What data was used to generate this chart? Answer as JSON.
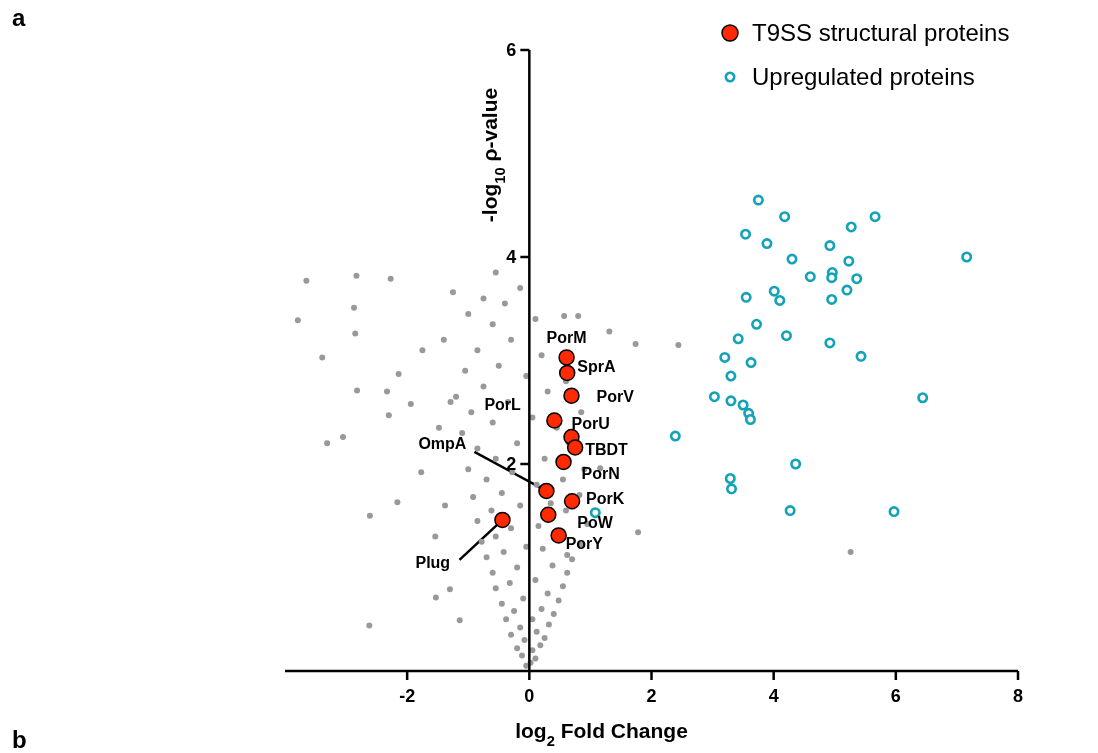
{
  "chart_data": {
    "type": "scatter",
    "xlabel": "log$_{2}$ Fold Change",
    "ylabel": "-log$_{10}$ ρ-value",
    "xlim": [
      -4,
      8
    ],
    "ylim": [
      0,
      6
    ],
    "xticks": [
      -2,
      0,
      2,
      4,
      6,
      8
    ],
    "yticks": [
      2,
      4,
      6
    ],
    "marker": "circle",
    "legend": "top right",
    "grid": false,
    "annotations": [
      "a",
      "b",
      {
        "text": "PorM",
        "x": 0.61,
        "y": 3.03
      },
      {
        "text": "SprA",
        "x": 0.62,
        "y": 2.88
      },
      {
        "text": "PorV",
        "x": 0.69,
        "y": 2.66
      },
      {
        "text": "PorL",
        "x": 0.41,
        "y": 2.42
      },
      {
        "text": "PorU",
        "x": 0.69,
        "y": 2.26
      },
      {
        "text": "TBDT",
        "x": 0.75,
        "y": 2.16
      },
      {
        "text": "PorN",
        "x": 0.56,
        "y": 2.02
      },
      {
        "text": "OmpA",
        "x": 0.28,
        "y": 1.74
      },
      {
        "text": "PorK",
        "x": 0.7,
        "y": 1.64
      },
      {
        "text": "PoW",
        "x": 0.31,
        "y": 1.51
      },
      {
        "text": "PorY",
        "x": 0.48,
        "y": 1.31
      },
      {
        "text": "Plug",
        "x": -0.44,
        "y": 1.46
      }
    ],
    "series": [
      {
        "color": "#999999",
        "x": [
          -0.05,
          0.02,
          0.1,
          -0.12,
          0.05,
          -0.2,
          0.18,
          -0.08,
          0.25,
          -0.3,
          0.12,
          -0.15,
          0.32,
          -0.38,
          0.05,
          0.4,
          -0.25,
          0.2,
          -0.45,
          0.48,
          -0.1,
          0.3,
          -0.55,
          0.55,
          -0.32,
          0.1,
          -0.6,
          0.62,
          -0.2,
          0.38,
          -0.7,
          0.7,
          -0.42,
          0.22,
          -0.05,
          -0.78,
          0.85,
          -0.55,
          0.62,
          -0.3,
          0.15,
          -0.85,
          0.95,
          -0.62,
          0.6,
          -0.15,
          0.35,
          -0.92,
          -0.45,
          0.82,
          0.12,
          -0.7,
          0.55,
          -0.28,
          -1.0,
          0.9,
          -0.55,
          0.25,
          -0.85,
          0.65,
          -0.2,
          -1.1,
          0.45,
          -0.6,
          0.05,
          -0.95,
          0.85,
          -0.35,
          -1.2,
          0.3,
          -0.75,
          0.6,
          -0.05,
          -1.05,
          -0.5,
          0.2,
          -0.85,
          -0.3,
          -1.4,
          -0.6,
          0.1,
          -1.0,
          -0.4,
          -0.75,
          -0.15,
          -0.55,
          -3.65,
          -2.83,
          -2.27,
          -1.25,
          -2.87,
          -3.79,
          -2.85,
          -3.39,
          -1.75,
          -2.14,
          -2.82,
          -2.33,
          -1.94,
          -1.29,
          -2.3,
          -3.31,
          -3.05,
          -1.48,
          -1.77,
          -2.16,
          -2.61,
          -1.54,
          -1.53,
          -2.62,
          -1.3,
          -1.14,
          -1.38,
          2.44,
          5.26,
          1.74,
          1.78,
          1.31,
          1.16,
          0.8,
          0.57
        ],
        "values": [
          0.05,
          0.08,
          0.12,
          0.15,
          0.2,
          0.22,
          0.25,
          0.3,
          0.32,
          0.35,
          0.38,
          0.42,
          0.45,
          0.5,
          0.5,
          0.55,
          0.58,
          0.6,
          0.65,
          0.68,
          0.7,
          0.75,
          0.8,
          0.82,
          0.85,
          0.88,
          0.95,
          0.95,
          1.0,
          1.02,
          1.1,
          1.08,
          1.15,
          1.18,
          1.2,
          1.25,
          1.22,
          1.3,
          1.12,
          1.38,
          1.4,
          1.45,
          1.42,
          1.55,
          1.55,
          1.6,
          1.62,
          1.68,
          1.72,
          1.7,
          1.8,
          1.85,
          1.85,
          1.92,
          1.95,
          1.95,
          2.05,
          2.05,
          2.15,
          2.2,
          2.2,
          2.3,
          2.35,
          2.4,
          2.45,
          2.5,
          2.5,
          2.6,
          2.65,
          2.7,
          2.75,
          2.8,
          2.85,
          2.9,
          2.95,
          3.05,
          3.1,
          3.2,
          3.2,
          3.35,
          3.4,
          3.45,
          3.55,
          3.6,
          3.7,
          3.85,
          3.77,
          3.82,
          3.79,
          3.66,
          3.51,
          3.39,
          3.26,
          3.03,
          3.1,
          2.87,
          2.71,
          2.7,
          2.58,
          2.6,
          2.47,
          2.2,
          2.26,
          2.35,
          1.92,
          1.63,
          1.5,
          1.3,
          0.71,
          0.44,
          0.79,
          0.49,
          1.6,
          3.15,
          1.15,
          3.16,
          1.34,
          3.28,
          1.96,
          3.43,
          3.43
        ]
      },
      {
        "name": "T9SS structural proteins",
        "color": "#ff2a00",
        "x": [
          0.61,
          0.62,
          0.69,
          0.41,
          0.69,
          0.75,
          0.56,
          0.28,
          0.7,
          0.31,
          0.48,
          -0.44
        ],
        "values": [
          3.03,
          2.88,
          2.66,
          2.42,
          2.26,
          2.16,
          2.02,
          1.74,
          1.64,
          1.51,
          1.31,
          1.46
        ]
      },
      {
        "name": "Upregulated proteins",
        "color": "#13a3b8",
        "x": [
          3.75,
          4.18,
          5.66,
          5.27,
          3.54,
          3.89,
          4.92,
          4.3,
          5.23,
          4.6,
          4.96,
          4.95,
          5.36,
          4.01,
          3.55,
          4.1,
          5.2,
          4.95,
          3.72,
          3.42,
          4.21,
          4.92,
          3.2,
          3.63,
          5.43,
          3.3,
          3.03,
          3.3,
          3.5,
          3.59,
          3.62,
          6.44,
          4.36,
          3.29,
          3.31,
          4.27,
          5.97,
          2.39,
          7.16,
          1.08
        ],
        "values": [
          4.55,
          4.39,
          4.39,
          4.29,
          4.22,
          4.13,
          4.11,
          3.98,
          3.96,
          3.81,
          3.85,
          3.8,
          3.79,
          3.67,
          3.61,
          3.58,
          3.68,
          3.59,
          3.35,
          3.21,
          3.24,
          3.17,
          3.03,
          2.98,
          3.04,
          2.85,
          2.65,
          2.61,
          2.57,
          2.49,
          2.43,
          2.64,
          2.0,
          1.86,
          1.76,
          1.55,
          1.54,
          2.27,
          4.0,
          1.53
        ]
      }
    ]
  }
}
